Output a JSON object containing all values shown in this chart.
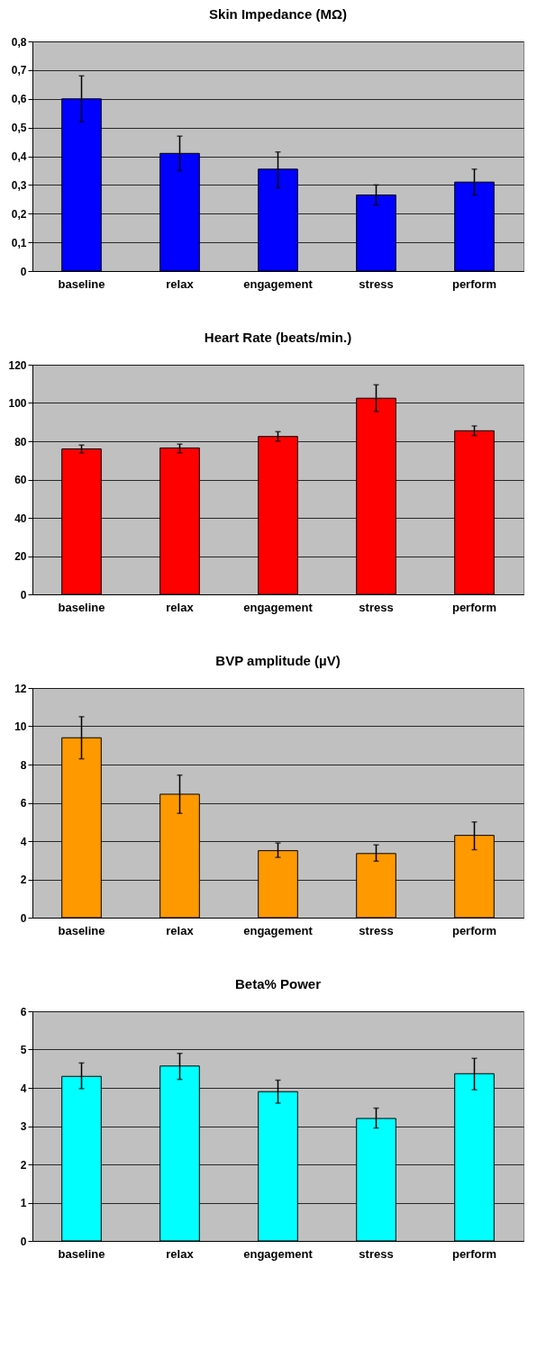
{
  "chart_data": [
    {
      "type": "bar",
      "title": "Skin Impedance (MΩ)",
      "categories": [
        "baseline",
        "relax",
        "engagement",
        "stress",
        "perform"
      ],
      "values": [
        0.6,
        0.41,
        0.355,
        0.265,
        0.31
      ],
      "errors": [
        [
          0.52,
          0.68
        ],
        [
          0.35,
          0.47
        ],
        [
          0.29,
          0.415
        ],
        [
          0.23,
          0.3
        ],
        [
          0.265,
          0.355
        ]
      ],
      "color": "#0000ff",
      "ylim": [
        0,
        0.8
      ],
      "yticks": [
        0,
        {
          "value": 0.1,
          "label": "0,1"
        },
        {
          "value": 0.2,
          "label": "0,2"
        },
        {
          "value": 0.3,
          "label": "0,3"
        },
        {
          "value": 0.4,
          "label": "0,4"
        },
        {
          "value": 0.5,
          "label": "0,5"
        },
        {
          "value": 0.6,
          "label": "0,6"
        },
        {
          "value": 0.7,
          "label": "0,7"
        },
        {
          "value": 0.8,
          "label": "0,8"
        }
      ],
      "grid": "y"
    },
    {
      "type": "bar",
      "title": "Heart Rate (beats/min.)",
      "categories": [
        "baseline",
        "relax",
        "engagement",
        "stress",
        "perform"
      ],
      "values": [
        76,
        76.5,
        82.5,
        102.5,
        85.5
      ],
      "errors": [
        [
          74,
          78
        ],
        [
          74,
          78.5
        ],
        [
          80,
          85
        ],
        [
          95.5,
          109.5
        ],
        [
          83,
          88
        ]
      ],
      "color": "#ff0000",
      "ylim": [
        0,
        120
      ],
      "yticks": [
        0,
        20,
        40,
        60,
        80,
        100,
        120
      ],
      "grid": "y"
    },
    {
      "type": "bar",
      "title": "BVP amplitude (µV)",
      "categories": [
        "baseline",
        "relax",
        "engagement",
        "stress",
        "perform"
      ],
      "values": [
        9.4,
        6.45,
        3.5,
        3.35,
        4.3
      ],
      "errors": [
        [
          8.3,
          10.5
        ],
        [
          5.45,
          7.45
        ],
        [
          3.15,
          3.9
        ],
        [
          2.95,
          3.8
        ],
        [
          3.55,
          5.0
        ]
      ],
      "color": "#ff9900",
      "ylim": [
        0,
        12
      ],
      "yticks": [
        0,
        2,
        4,
        6,
        8,
        10,
        12
      ],
      "grid": "y"
    },
    {
      "type": "bar",
      "title": "Beta% Power",
      "categories": [
        "baseline",
        "relax",
        "engagement",
        "stress",
        "perform"
      ],
      "values": [
        4.3,
        4.57,
        3.9,
        3.2,
        4.37
      ],
      "errors": [
        [
          3.98,
          4.65
        ],
        [
          4.22,
          4.9
        ],
        [
          3.6,
          4.2
        ],
        [
          2.95,
          3.47
        ],
        [
          3.95,
          4.77
        ]
      ],
      "color": "#00ffff",
      "ylim": [
        0,
        6
      ],
      "yticks": [
        0,
        1,
        2,
        3,
        4,
        5,
        6
      ],
      "grid": "y"
    }
  ]
}
